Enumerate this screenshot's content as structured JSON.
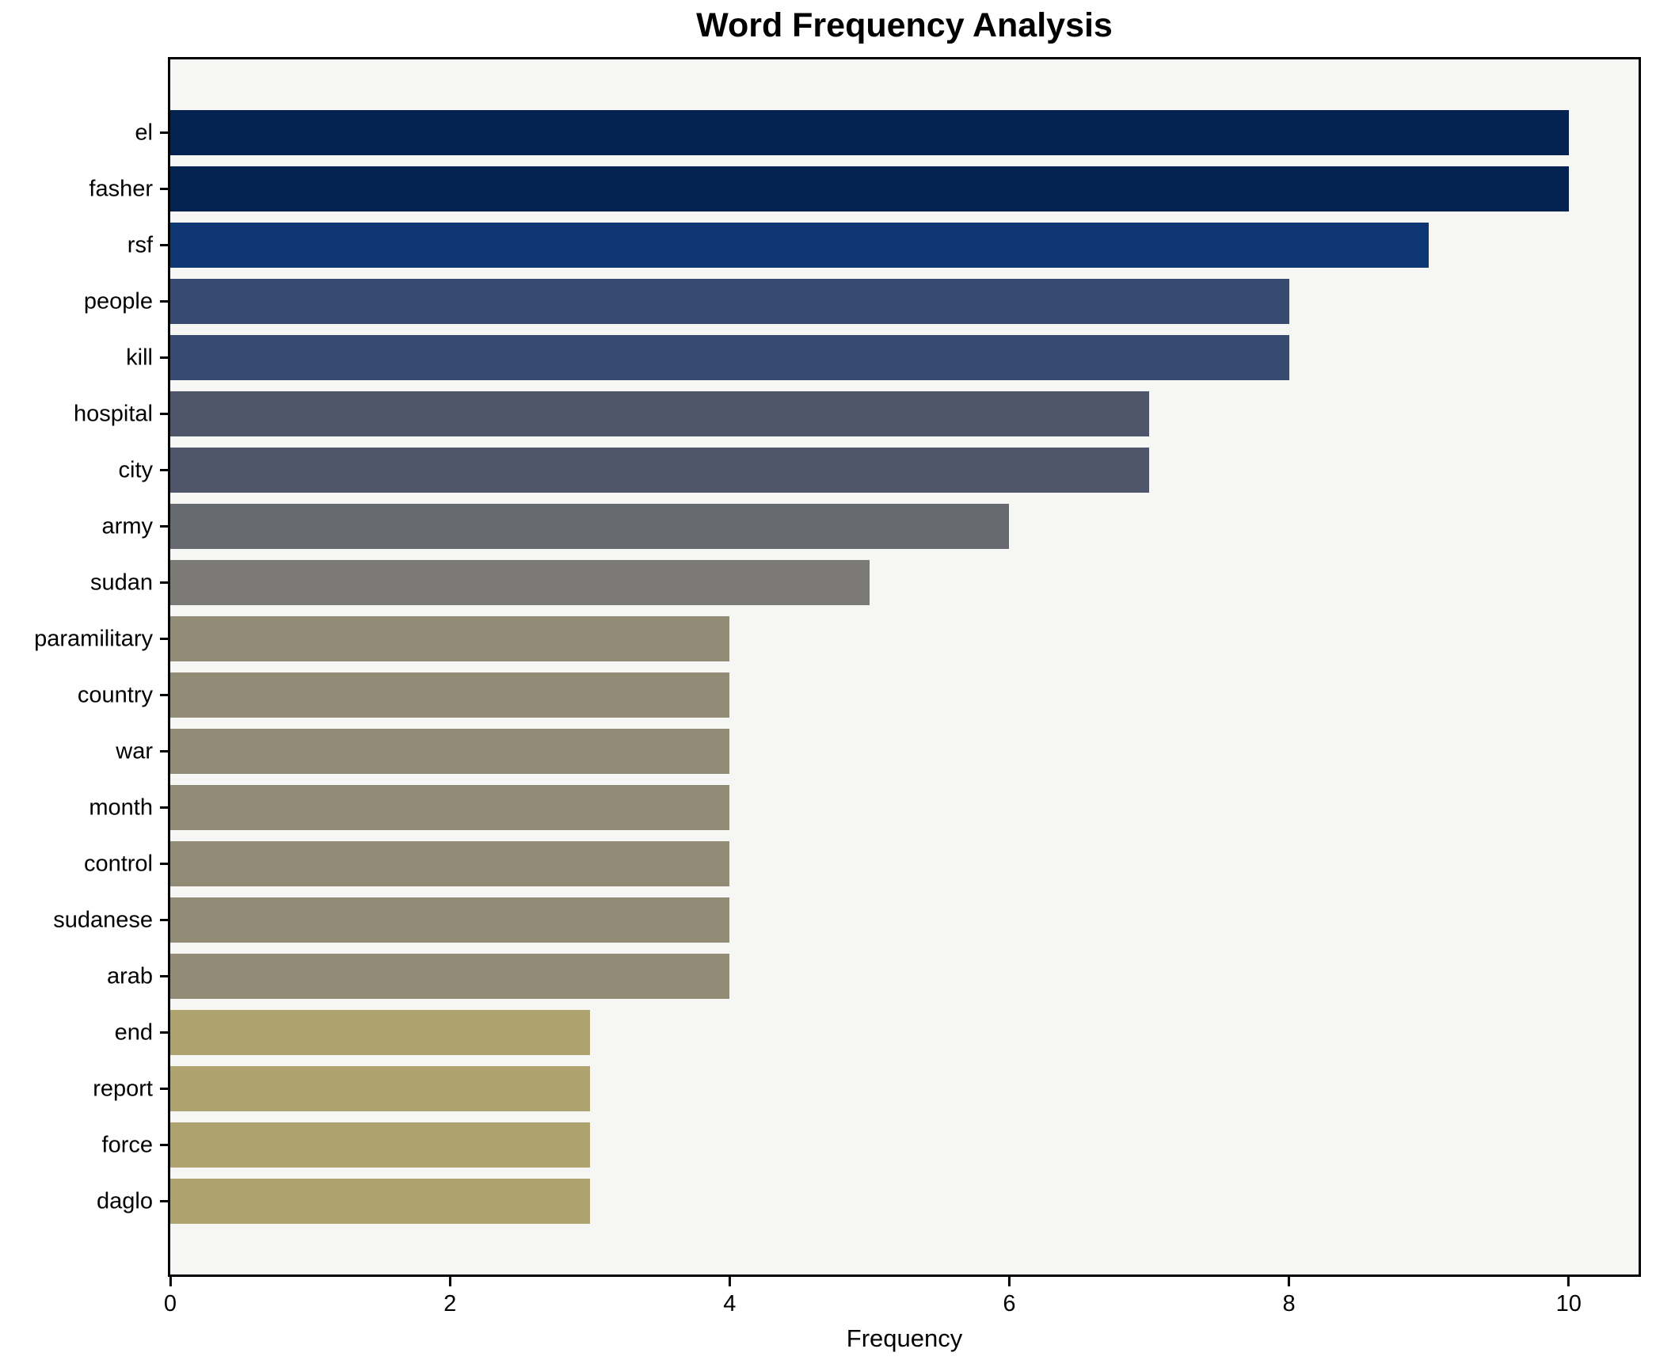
{
  "chart_data": {
    "type": "bar",
    "orientation": "horizontal",
    "title": "Word Frequency Analysis",
    "xlabel": "Frequency",
    "ylabel": "",
    "categories": [
      "el",
      "fasher",
      "rsf",
      "people",
      "kill",
      "hospital",
      "city",
      "army",
      "sudan",
      "paramilitary",
      "country",
      "war",
      "month",
      "control",
      "sudanese",
      "arab",
      "end",
      "report",
      "force",
      "daglo"
    ],
    "values": [
      10,
      10,
      9,
      8,
      8,
      7,
      7,
      6,
      5,
      4,
      4,
      4,
      4,
      4,
      4,
      4,
      3,
      3,
      3,
      3
    ],
    "bar_colors": [
      "#042350",
      "#042350",
      "#0e3773",
      "#374a70",
      "#374a70",
      "#4f566c",
      "#4f566c",
      "#666970",
      "#7b7a76",
      "#928c76",
      "#928c76",
      "#928c76",
      "#928c76",
      "#928c76",
      "#928c76",
      "#928c76",
      "#aea36f",
      "#aea36f",
      "#aea36f",
      "#aea36f"
    ],
    "xlim": [
      0,
      10.5
    ],
    "xticks": [
      0,
      2,
      4,
      6,
      8,
      10
    ],
    "grid": false,
    "legend": null,
    "plot_background": "#f6f6f4",
    "figure_background": "#ffffff",
    "spine_color": "#000000"
  }
}
